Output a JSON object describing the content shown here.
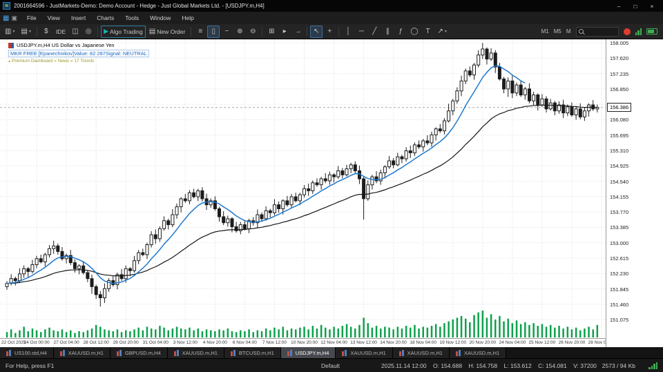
{
  "window": {
    "title": "2001664596 - JustMarkets-Demo: Demo Account - Hedge - Just Global Markets Ltd. - [USDJPY.m,H4]",
    "minimize_glyph": "–",
    "restore_glyph": "□",
    "close_glyph": "×",
    "app_glyph": "≣"
  },
  "menu": {
    "logo_glyph": "▦",
    "window_glyph": "▣",
    "items": [
      "File",
      "View",
      "Insert",
      "Charts",
      "Tools",
      "Window",
      "Help"
    ]
  },
  "icons": {
    "new_chart": "▥",
    "caret": "▾",
    "profiles": "▤",
    "market_watch": "$",
    "data_window": "◫",
    "tester": "◎",
    "play": "▶",
    "order_doc": "▤",
    "bars": "≡",
    "candles": "▯",
    "line": "~",
    "zoom_in": "⊕",
    "zoom_out": "⊖",
    "tile": "⊞",
    "autoscroll": "▸",
    "shift": "→",
    "cursor": "↖",
    "crosshair": "+",
    "vline": "│",
    "hline": "─",
    "trend": "╱",
    "channel": "∥",
    "fib": "ƒ",
    "ellipse": "◯",
    "text": "T",
    "arrow": "↗",
    "more": "…"
  },
  "toolbar": {
    "ide_label": "IDE",
    "algo_label": "Algo Trading",
    "new_order_label": "New Order",
    "timeframes": [
      "M1",
      "M5",
      "M"
    ]
  },
  "chart": {
    "symbol_title": "USDJPY.m,H4  US Dollar vs Japanese Yen",
    "indicator_text": "MKR FREE [Epanechnikov]Value: 82 287Signal: NEUTRAL",
    "premium_text": "Premium Dashboard » News » 17 Trends",
    "price_tag": "156.386"
  },
  "chart_data": {
    "type": "candlestick",
    "symbol": "USDJPY.m",
    "timeframe": "H4",
    "ylim": [
      151.075,
      158.005
    ],
    "first_open": 151.9,
    "closes": [
      151.98,
      152.1,
      152.05,
      152.22,
      152.35,
      152.28,
      152.45,
      152.6,
      152.52,
      152.7,
      152.85,
      152.92,
      152.78,
      152.6,
      152.68,
      152.5,
      152.35,
      152.42,
      152.25,
      152.1,
      151.9,
      151.7,
      151.62,
      151.85,
      152.05,
      151.95,
      152.2,
      152.1,
      152.35,
      152.3,
      152.55,
      152.75,
      152.7,
      152.95,
      153.2,
      153.1,
      153.35,
      153.55,
      153.45,
      153.7,
      153.9,
      154.1,
      154.05,
      154.25,
      154.15,
      154.3,
      154.1,
      153.95,
      154.05,
      153.85,
      153.65,
      153.5,
      153.6,
      153.4,
      153.3,
      153.45,
      153.35,
      153.55,
      153.5,
      153.7,
      153.6,
      153.8,
      153.75,
      153.95,
      153.85,
      154.05,
      153.95,
      154.15,
      154.05,
      154.2,
      154.35,
      154.3,
      154.5,
      154.45,
      154.6,
      154.55,
      154.7,
      154.65,
      154.8,
      154.7,
      154.85,
      154.95,
      154.8,
      154.6,
      154.1,
      154.45,
      154.65,
      154.55,
      154.75,
      154.9,
      155.05,
      154.95,
      155.15,
      155.1,
      155.3,
      155.25,
      155.45,
      155.4,
      155.55,
      155.5,
      155.7,
      155.85,
      155.8,
      156.05,
      156.3,
      156.55,
      156.8,
      157.05,
      157.3,
      157.2,
      157.45,
      157.7,
      157.85,
      157.6,
      157.75,
      157.4,
      157.1,
      156.85,
      157.05,
      156.75,
      156.95,
      156.7,
      156.85,
      156.55,
      156.7,
      156.45,
      156.6,
      156.35,
      156.5,
      156.3,
      156.45,
      156.25,
      156.4,
      156.2,
      156.35,
      156.15,
      156.3,
      156.45,
      156.35,
      156.39
    ],
    "volumes": [
      6,
      9,
      5,
      8,
      12,
      7,
      10,
      8,
      6,
      9,
      11,
      8,
      7,
      9,
      6,
      8,
      5,
      7,
      6,
      8,
      10,
      14,
      12,
      9,
      8,
      7,
      9,
      6,
      8,
      7,
      9,
      11,
      8,
      12,
      10,
      9,
      13,
      11,
      8,
      10,
      12,
      10,
      9,
      11,
      8,
      10,
      7,
      9,
      8,
      7,
      9,
      8,
      10,
      7,
      6,
      8,
      7,
      9,
      6,
      8,
      7,
      10,
      8,
      11,
      9,
      12,
      8,
      10,
      9,
      11,
      12,
      9,
      13,
      10,
      14,
      11,
      9,
      12,
      10,
      13,
      15,
      12,
      10,
      14,
      22,
      16,
      11,
      13,
      10,
      12,
      11,
      9,
      12,
      10,
      13,
      11,
      14,
      10,
      12,
      11,
      13,
      15,
      12,
      16,
      18,
      20,
      22,
      24,
      21,
      17,
      25,
      28,
      30,
      22,
      26,
      20,
      24,
      18,
      21,
      16,
      19,
      15,
      17,
      14,
      16,
      13,
      15,
      12,
      14,
      11,
      13,
      10,
      12,
      9,
      11,
      8,
      10,
      12,
      9,
      14
    ],
    "wick_up_pattern": [
      0.06,
      0.11,
      0.05,
      0.14,
      0.08,
      0.04,
      0.12,
      0.07,
      0.1,
      0.05,
      0.09,
      0.13
    ],
    "wick_down_pattern": [
      0.08,
      0.05,
      0.12,
      0.06,
      0.1,
      0.14,
      0.05,
      0.09,
      0.04,
      0.11,
      0.07,
      0.13
    ],
    "wick_overrides": {
      "up": {
        "104": 0.18,
        "111": 0.12,
        "112": 0.15
      },
      "down": {
        "20": 0.18,
        "22": 0.22,
        "84": 0.52,
        "115": 0.15,
        "118": 0.2
      }
    },
    "bid_price": 156.386,
    "price_axis": [
      "158.005",
      "157.620",
      "157.235",
      "156.850",
      "156.465",
      "156.080",
      "155.695",
      "155.310",
      "154.925",
      "154.540",
      "154.155",
      "153.770",
      "153.385",
      "153.000",
      "152.615",
      "152.230",
      "151.845",
      "151.460",
      "151.075"
    ],
    "time_axis": [
      "22 Oct 2025",
      "24 Oct 00:00",
      "27 Oct 04:00",
      "28 Oct 12:00",
      "29 Oct 20:00",
      "31 Oct 04:00",
      "3 Nov 12:00",
      "4 Nov 20:00",
      "6 Nov 04:00",
      "7 Nov 12:00",
      "10 Nov 20:00",
      "12 Nov 04:00",
      "13 Nov 12:00",
      "14 Nov 20:00",
      "18 Nov 04:00",
      "19 Nov 12:00",
      "20 Nov 20:00",
      "24 Nov 04:00",
      "25 Nov 12:00",
      "26 Nov 20:00",
      "28 Nov 04:00"
    ]
  },
  "tabs": [
    {
      "label": "US100.std,H4",
      "active": false
    },
    {
      "label": "XAUUSD.m,H1",
      "active": false
    },
    {
      "label": "GBPUSD.m,H4",
      "active": false
    },
    {
      "label": "XAUUSD.m,H1",
      "active": false
    },
    {
      "label": "BTCUSD.m,H1",
      "active": false
    },
    {
      "label": "USDJPY.m,H4",
      "active": true
    },
    {
      "label": "XAUUSD.m,H1",
      "active": false
    },
    {
      "label": "XAUUSD.m,H1",
      "active": false
    },
    {
      "label": "XAUUSD.m,H1",
      "active": false
    }
  ],
  "status": {
    "help": "For Help, press F1",
    "profile": "Default",
    "ohlcv": "2025.11.14 12:00    O: 154.688    H: 154.758    L: 153.612    C: 154.081    V: 37200",
    "traffic": "2573 / 94 Kb"
  },
  "colors": {
    "bull": "#ffffff",
    "bear": "#1c1c1c",
    "wick": "#1c1c1c",
    "ma_fast": "#1d78cc",
    "ma_slow": "#151515",
    "volume": "#0da04b",
    "grid": "#dcdcdc",
    "bid_line": "#a8a8a8",
    "accent": "#2d7f9e",
    "badge": "#e03c31",
    "green": "#3fae52"
  }
}
